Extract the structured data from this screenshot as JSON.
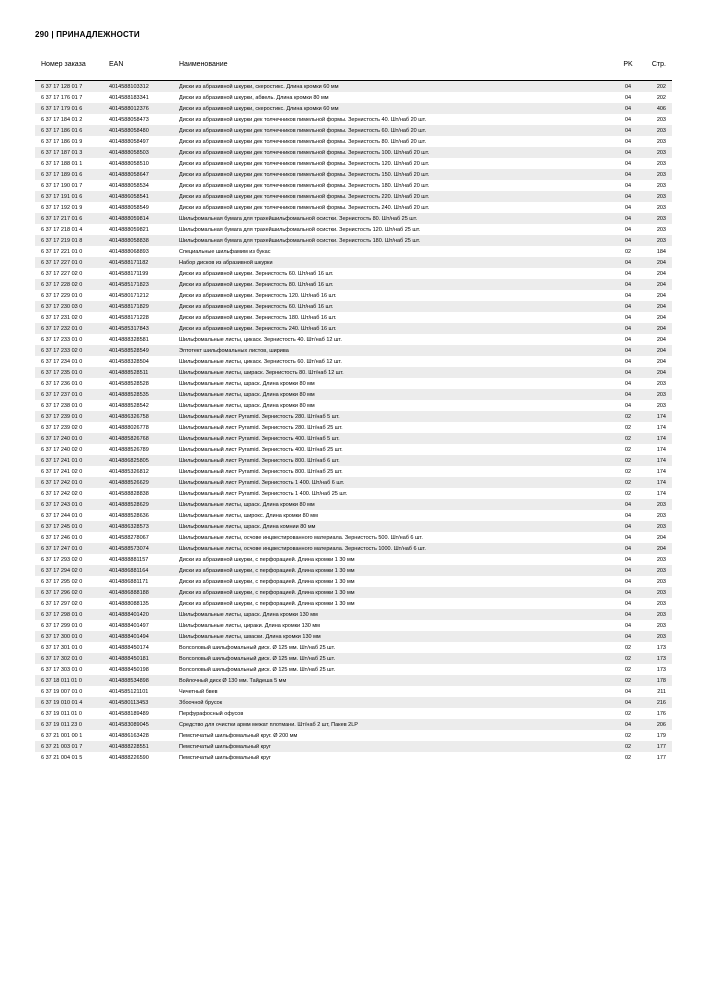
{
  "header": "290 | ПРИНАДЛЕЖНОСТИ",
  "columns": [
    "Номер заказа",
    "EAN",
    "Наименование",
    "PK",
    "Стр."
  ],
  "rows": [
    [
      "6 37 17 128 01 7",
      "4014588103312",
      "Диски из абразивной шкурки, скеростикс. Длина кромки 60 мм",
      "04",
      "202"
    ],
    [
      "6 37 17 176 01 7",
      "4014588183341",
      "Диски из абразивной шкурки, абвель. Длина кромки 80 мм",
      "04",
      "202"
    ],
    [
      "6 37 17 179 01 6",
      "4014588012376",
      "Диски из абразивной шкурки, скеростикс. Длина кромки 60 мм",
      "04",
      "406"
    ],
    [
      "6 37 17 184 01 2",
      "4014588058473",
      "Диски из абразивной шкурки дек толчечников пимельной формы. Зернистость 40. Шт/наб 20 шт.",
      "04",
      "203"
    ],
    [
      "6 37 17 186 01 6",
      "4014588058480",
      "Диски из абразивной шкурки дек толчечников пимельной формы. Зернистость 60. Шт/наб 20 шт.",
      "04",
      "203"
    ],
    [
      "6 37 17 186 01 9",
      "4014888058497",
      "Диски из абразивной шкурки дек толчечников пимельной формы. Зернистость 80. Шт/наб 20 шт.",
      "04",
      "203"
    ],
    [
      "6 37 17 187 01 3",
      "4014888058503",
      "Диски из абразивной шкурки дек толчечников пимельной формы. Зернистость 100. Шт/наб 20 шт.",
      "04",
      "203"
    ],
    [
      "6 37 17 188 01 1",
      "4014888058510",
      "Диски из абразивной шкурки дек толчечников пимельной формы. Зернистость 120. Шт/наб 20 шт.",
      "04",
      "203"
    ],
    [
      "6 37 17 189 01 6",
      "4014888058647",
      "Диски из абразивной шкурки дек толчечников пимельной формы. Зернистость 150. Шт/наб 20 шт.",
      "04",
      "203"
    ],
    [
      "6 37 17 190 01 7",
      "4014888058534",
      "Диски из абразивной шкурки дек толчечников пимельной формы. Зернистость 180. Шт/наб 20 шт.",
      "04",
      "203"
    ],
    [
      "6 37 17 191 01 6",
      "4014886058541",
      "Диски из абразивной шкурки дек толчечников пимельной формы. Зернистость 220. Шт/наб 20 шт.",
      "04",
      "203"
    ],
    [
      "6 37 17 192 01 9",
      "4014888058549",
      "Диски из абразивной шкурки дек толчечников пимельной формы. Зернистость 240. Шт/наб 20 шт.",
      "04",
      "203"
    ],
    [
      "6 37 17 217 01 6",
      "4014888059814",
      "Шильфомальная бумага для трахейшильфомальной осистки. Зернистость 80. Шт/наб 25 шт.",
      "04",
      "203"
    ],
    [
      "6 37 17 218 01 4",
      "4014888059821",
      "Шильфомальная бумага для трахейшильфомальной осистки. Зернистость 120. Шт/наб 25 шт.",
      "04",
      "203"
    ],
    [
      "6 37 17 219 01 8",
      "4014888058838",
      "Шильфомальная бумага для трахейшильфомальной осистки. Зернистость 180. Шт/наб 25 шт.",
      "04",
      "203"
    ],
    [
      "6 37 17 221 01 0",
      "4014888068893",
      "Специальные шильфамим из букас",
      "02",
      "184"
    ],
    [
      "6 37 17 227 01 0",
      "4014588171182",
      "Набор дисков из абразивной шкурки",
      "04",
      "204"
    ],
    [
      "6 37 17 227 02 0",
      "4014588171199",
      "Диски из абразивной шкурки. Зернистость 60. Шт/наб 16 шт.",
      "04",
      "204"
    ],
    [
      "6 37 17 228 02 0",
      "4014585171823",
      "Диски из абразивной шкурки. Зернистость 80. Шт/наб 16 шт.",
      "04",
      "204"
    ],
    [
      "6 37 17 229 01 0",
      "4014580171212",
      "Диски из абразивной шкурки. Зернистость 120. Шт/наб 16 шт.",
      "04",
      "204"
    ],
    [
      "6 37 17 230 03 0",
      "4014588171829",
      "Диски из абразивной шкурки. Зернистость 60. Шт/наб 16 шт.",
      "04",
      "204"
    ],
    [
      "6 37 17 231 02 0",
      "4014588171228",
      "Диски из абразивной шкурки. Зернистость 180. Шт/наб 16 шт.",
      "04",
      "204"
    ],
    [
      "6 37 17 232 01 0",
      "4014585317843",
      "Диски из абразивной шкурки. Зернистость 240. Шт/наб 16 шт.",
      "04",
      "204"
    ],
    [
      "6 37 17 233 01 0",
      "4014888328581",
      "Шильфомальные листы, цикаск. Зернистость 40. Шт/наб 12 шт.",
      "04",
      "204"
    ],
    [
      "6 37 17 233 02 0",
      "4014588528549",
      "Элтотект шильфомальных листов, ширива",
      "04",
      "204"
    ],
    [
      "6 37 17 234 01 0",
      "4014588328504",
      "Шильфомальные листы, цикаск. Зернистость 60. Шт/наб 12 шт.",
      "04",
      "204"
    ],
    [
      "6 37 17 235 01 0",
      "4014888528511",
      "Шильфомальные листы, шираск. Зернистость 80. Шт/наб 12 шт.",
      "04",
      "204"
    ],
    [
      "6 37 17 236 01 0",
      "4014588528528",
      "Шильфомальные листы, шраск. Длина кромки 80 мм",
      "04",
      "203"
    ],
    [
      "6 37 17 237 01 0",
      "4014888528535",
      "Шильфомальные листы, шраск. Длина кромки 80 мм",
      "04",
      "203"
    ],
    [
      "6 37 17 238 01 0",
      "4014888528542",
      "Шильфомальные листы, шраск. Длина кромки 80 мм",
      "04",
      "203"
    ],
    [
      "6 37 17 239 01 0",
      "4014886326758",
      "Шильфомальный лист Pyramid. Зернистость 280. Шт/наб 5 шт.",
      "02",
      "174"
    ],
    [
      "6 37 17 239 02 0",
      "4014888026778",
      "Шильфомальный лист Pyramid. Зернистость 280. Шт/наб 25 шт.",
      "02",
      "174"
    ],
    [
      "6 37 17 240 01 0",
      "4014885826768",
      "Шильфомальный лист Pyramid. Зернистость 400. Шт/наб 5 шт.",
      "02",
      "174"
    ],
    [
      "6 37 17 240 02 0",
      "4014888526789",
      "Шильфомальный лист Pyramid. Зернистость 400. Шт/наб 25 шт.",
      "02",
      "174"
    ],
    [
      "6 37 17 241 01 0",
      "4014886825805",
      "Шильфомальный лист Pyramid. Зернистость 800. Шт/наб 6 шт.",
      "02",
      "174"
    ],
    [
      "6 37 17 241 02 0",
      "4014885326812",
      "Шильфомальный лист Pyramid. Зернистость 800. Шт/наб 25 шт.",
      "02",
      "174"
    ],
    [
      "6 37 17 242 01 0",
      "4014888526629",
      "Шильфомальный лист Pyramid. Зернистость 1 400. Шт/наб 6 шт.",
      "02",
      "174"
    ],
    [
      "6 37 17 242 02 0",
      "4014588828838",
      "Шильфомальный лист Pyramid. Зернистость 1 400. Шт/наб 25 шт.",
      "02",
      "174"
    ],
    [
      "6 37 17 243 01 0",
      "4014888528629",
      "Шильфомальные листы, шраск. Длина кромки 80 мм",
      "04",
      "203"
    ],
    [
      "6 37 17 244 01 0",
      "4014888528636",
      "Шильфомальные листы, широкс. Длина кромки 80 мм",
      "04",
      "203"
    ],
    [
      "6 37 17 245 01 0",
      "4014886328573",
      "Шильфомальные листы, шраск. Длина комнии 80 мм",
      "04",
      "203"
    ],
    [
      "6 37 17 246 01 0",
      "4014588278067",
      "Шильфомальные листы, осчове инцвестированного материала. Зернистость 500. Шт/наб 6 шт.",
      "04",
      "204"
    ],
    [
      "6 37 17 247 01 0",
      "4014588573074",
      "Шильфомальные листы, осчове инцвестированного материала. Зернистость 1000. Шт/наб 6 шт.",
      "04",
      "204"
    ],
    [
      "6 37 17 293 02 0",
      "4014888881157",
      "Диски из абразивной шкурки, с перфорацией. Длина кромки 1 30 мм",
      "04",
      "203"
    ],
    [
      "6 37 17 294 02 0",
      "4014886881164",
      "Диски из абразивной шкурки, с перфорацией. Длина кромки 1 30 мм",
      "04",
      "203"
    ],
    [
      "6 37 17 295 02 0",
      "4014886881171",
      "Диски из абразивной шкурки, с перфорацией. Длина кромки 1 30 мм",
      "04",
      "203"
    ],
    [
      "6 37 17 296 02 0",
      "4014886888188",
      "Диски из абразивной шкурки, с перфорацией. Длина кромки 1 30 мм",
      "04",
      "203"
    ],
    [
      "6 37 17 297 02 0",
      "4014888088135",
      "Диски из абразивной шкурки, с перфорацией. Длина кромки 1 30 мм",
      "04",
      "203"
    ],
    [
      "6 37 17 298 01 0",
      "4014888401420",
      "Шильфомальные листы, шраск. Длина кромки 130 мм",
      "04",
      "203"
    ],
    [
      "6 37 17 299 01 0",
      "4014888401497",
      "Шильфомальные листы, цираки. Длина кромки 130 мм",
      "04",
      "203"
    ],
    [
      "6 37 17 300 01 0",
      "4014888401494",
      "Шильфомальные листы, шваски. Длина кромки 130 мм",
      "04",
      "203"
    ],
    [
      "6 37 17 301 01 0",
      "4014888450174",
      "Волсоловый шильфомальный диск. Ø 125 мм. Шт/наб 25 шт.",
      "02",
      "173"
    ],
    [
      "6 37 17 302 01 0",
      "4014888450181",
      "Волсоловый шильфомальный диск. Ø 125 мм. Шт/наб 25 шт.",
      "02",
      "173"
    ],
    [
      "6 37 17 303 01 0",
      "4014888450198",
      "Волсоловый шильфомальный диск. Ø 125 мм. Шт/наб 25 шт.",
      "02",
      "173"
    ],
    [
      "6 37 18 011 01 0",
      "4014888534898",
      "Войлочный диск Ø 130 мм. Тайдеша 5 мм",
      "02",
      "178"
    ],
    [
      "6 37 19 007 01 0",
      "4014585121101",
      "Чичетный бвев",
      "04",
      "211"
    ],
    [
      "6 37 19 010 01 4",
      "4014580113453",
      "Збоочной брусок",
      "04",
      "216"
    ],
    [
      "6 37 19 011 01 0",
      "4014588189489",
      "Перфурафосный офусов",
      "02",
      "176"
    ],
    [
      "6 37 19 011 23 0",
      "4014583089045",
      "Средство для очистки армм межат плотмани. Шт/наб 2 шт, Пакев 2LP",
      "04",
      "206"
    ],
    [
      "6 37 21 001 00 1",
      "4014886163428",
      "Пемстичатый шильфомальный круг. Ø 200 мм",
      "02",
      "179"
    ],
    [
      "6 37 21 003 01 7",
      "4014888228551",
      "Пемстичатый шильфомальный круг",
      "02",
      "177"
    ],
    [
      "6 37 21 004 01 5",
      "4014888226590",
      "Пемстичатый шильфомальный круг",
      "02",
      "177"
    ]
  ]
}
